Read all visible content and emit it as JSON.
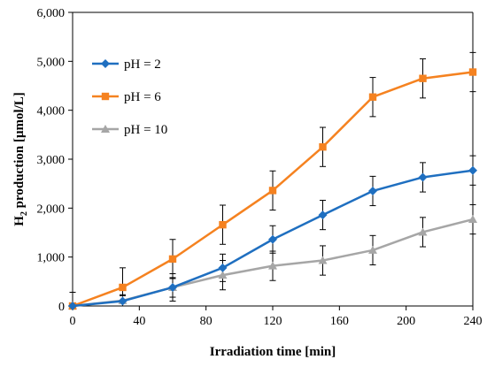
{
  "chart_data": {
    "type": "line",
    "xlabel": "Irradiation time [min]",
    "ylabel": {
      "prefix": "H",
      "subscript": "2",
      "suffix": " production [μmol/L]"
    },
    "x": [
      0,
      30,
      60,
      90,
      120,
      150,
      180,
      210,
      240
    ],
    "xlim": [
      0,
      240
    ],
    "ylim": [
      0,
      6000
    ],
    "xticks": [
      0,
      40,
      80,
      120,
      160,
      200,
      240
    ],
    "xtick_labels": [
      "0",
      "40",
      "80",
      "120",
      "160",
      "200",
      "240"
    ],
    "yticks": [
      0,
      1000,
      2000,
      3000,
      4000,
      5000,
      6000
    ],
    "ytick_labels": [
      "0",
      "1,000",
      "2,000",
      "3,000",
      "4,000",
      "5,000",
      "6,000"
    ],
    "grid": false,
    "legend_position": "top-left",
    "series": [
      {
        "name": "pH = 2",
        "color": "#1f6fc0",
        "marker": "diamond",
        "values": [
          0,
          100,
          380,
          780,
          1360,
          1860,
          2350,
          2630,
          2770
        ],
        "errors": [
          280,
          110,
          200,
          280,
          280,
          300,
          300,
          300,
          300
        ]
      },
      {
        "name": "pH = 6",
        "color": "#f58220",
        "marker": "square",
        "values": [
          0,
          380,
          960,
          1660,
          2360,
          3250,
          4270,
          4650,
          4780
        ],
        "errors": [
          280,
          400,
          400,
          400,
          400,
          400,
          400,
          400,
          400
        ]
      },
      {
        "name": "pH = 10",
        "color": "#a6a6a6",
        "marker": "triangle",
        "values": [
          0,
          110,
          380,
          630,
          820,
          930,
          1140,
          1510,
          1770
        ],
        "errors": [
          280,
          120,
          280,
          300,
          300,
          300,
          300,
          300,
          300
        ]
      }
    ]
  }
}
